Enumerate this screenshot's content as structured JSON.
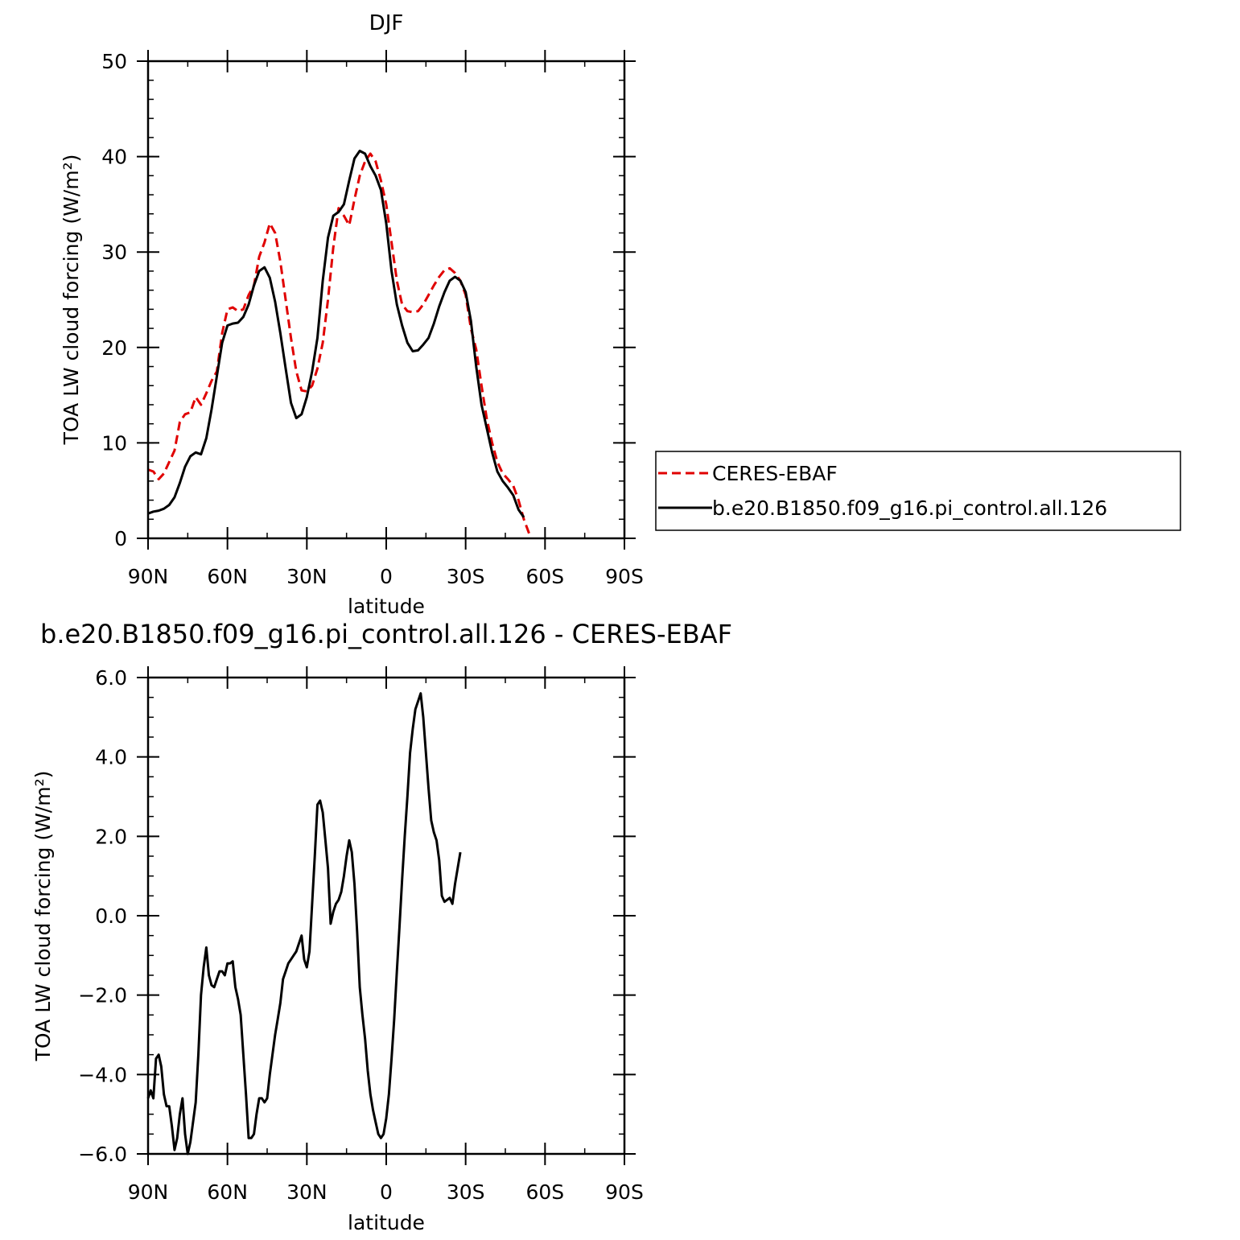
{
  "chart_data": [
    {
      "type": "line",
      "title": "DJF",
      "xlabel": "latitude",
      "ylabel": "TOA LW cloud forcing (W/m²)",
      "xlim": [
        90,
        -90
      ],
      "ylim": [
        0,
        50
      ],
      "x_ticks": [
        90,
        60,
        30,
        0,
        -30,
        -60,
        -90
      ],
      "x_tick_labels": [
        "90N",
        "60N",
        "30N",
        "0",
        "30S",
        "60S",
        "90S"
      ],
      "y_ticks": [
        0,
        10,
        20,
        30,
        40,
        50
      ],
      "y_tick_labels": [
        "0",
        "10",
        "20",
        "30",
        "40",
        "50"
      ],
      "legend_position": "right",
      "series": [
        {
          "name": "CERES-EBAF",
          "color": "#e00000",
          "dash": "dashed",
          "points": [
            [
              90,
              7.2
            ],
            [
              88,
              7.0
            ],
            [
              86,
              6.2
            ],
            [
              84,
              6.8
            ],
            [
              82,
              8.0
            ],
            [
              80,
              9.2
            ],
            [
              78,
              12.2
            ],
            [
              76,
              13.0
            ],
            [
              74,
              13.2
            ],
            [
              72,
              14.8
            ],
            [
              70,
              14.0
            ],
            [
              68,
              15.2
            ],
            [
              66,
              16.5
            ],
            [
              64,
              17.5
            ],
            [
              62,
              21.5
            ],
            [
              60,
              24.0
            ],
            [
              58,
              24.2
            ],
            [
              56,
              23.8
            ],
            [
              54,
              24.0
            ],
            [
              52,
              25.5
            ],
            [
              50,
              26.5
            ],
            [
              48,
              29.5
            ],
            [
              46,
              31.0
            ],
            [
              44,
              33.0
            ],
            [
              42,
              32.0
            ],
            [
              40,
              29.0
            ],
            [
              38,
              25.0
            ],
            [
              36,
              21.0
            ],
            [
              34,
              17.5
            ],
            [
              32,
              15.5
            ],
            [
              30,
              15.4
            ],
            [
              28,
              16.0
            ],
            [
              26,
              17.8
            ],
            [
              24,
              20.5
            ],
            [
              22,
              25.0
            ],
            [
              20,
              30.5
            ],
            [
              18,
              34.6
            ],
            [
              16,
              33.8
            ],
            [
              14,
              32.8
            ],
            [
              12,
              35.5
            ],
            [
              10,
              38.0
            ],
            [
              8,
              39.5
            ],
            [
              6,
              40.3
            ],
            [
              4,
              39.5
            ],
            [
              2,
              37.5
            ],
            [
              0,
              35.0
            ],
            [
              -2,
              31.0
            ],
            [
              -4,
              27.0
            ],
            [
              -6,
              24.5
            ],
            [
              -8,
              23.8
            ],
            [
              -10,
              23.7
            ],
            [
              -12,
              23.8
            ],
            [
              -14,
              24.5
            ],
            [
              -16,
              25.5
            ],
            [
              -18,
              26.5
            ],
            [
              -20,
              27.4
            ],
            [
              -22,
              28.1
            ],
            [
              -24,
              28.3
            ],
            [
              -26,
              27.8
            ],
            [
              -28,
              27.0
            ],
            [
              -30,
              25.5
            ],
            [
              -32,
              22.0
            ],
            [
              -34,
              19.8
            ],
            [
              -36,
              16.0
            ],
            [
              -38,
              12.5
            ],
            [
              -40,
              10.0
            ],
            [
              -42,
              8.0
            ],
            [
              -44,
              6.8
            ],
            [
              -46,
              6.2
            ],
            [
              -48,
              5.5
            ],
            [
              -50,
              4.0
            ],
            [
              -52,
              2.0
            ],
            [
              -54,
              0.5
            ]
          ]
        },
        {
          "name": "b.e20.B1850.f09_g16.pi_control.all.126",
          "color": "#000000",
          "dash": "solid",
          "points": [
            [
              90,
              2.6
            ],
            [
              88,
              2.8
            ],
            [
              86,
              2.9
            ],
            [
              84,
              3.1
            ],
            [
              82,
              3.5
            ],
            [
              80,
              4.3
            ],
            [
              78,
              5.8
            ],
            [
              76,
              7.5
            ],
            [
              74,
              8.6
            ],
            [
              72,
              9.0
            ],
            [
              70,
              8.8
            ],
            [
              68,
              10.5
            ],
            [
              66,
              13.5
            ],
            [
              64,
              17.0
            ],
            [
              62,
              20.5
            ],
            [
              60,
              22.3
            ],
            [
              58,
              22.5
            ],
            [
              56,
              22.6
            ],
            [
              54,
              23.2
            ],
            [
              52,
              24.5
            ],
            [
              50,
              26.5
            ],
            [
              48,
              28.0
            ],
            [
              46,
              28.4
            ],
            [
              44,
              27.3
            ],
            [
              42,
              24.8
            ],
            [
              40,
              21.5
            ],
            [
              38,
              17.8
            ],
            [
              36,
              14.2
            ],
            [
              34,
              12.6
            ],
            [
              32,
              13.0
            ],
            [
              30,
              14.8
            ],
            [
              28,
              17.5
            ],
            [
              26,
              21.0
            ],
            [
              24,
              27.0
            ],
            [
              22,
              31.5
            ],
            [
              20,
              33.8
            ],
            [
              18,
              34.2
            ],
            [
              16,
              35.0
            ],
            [
              14,
              37.5
            ],
            [
              12,
              39.8
            ],
            [
              10,
              40.6
            ],
            [
              8,
              40.3
            ],
            [
              6,
              39.0
            ],
            [
              4,
              38.0
            ],
            [
              2,
              36.5
            ],
            [
              0,
              33.0
            ],
            [
              -2,
              28.0
            ],
            [
              -4,
              24.5
            ],
            [
              -6,
              22.3
            ],
            [
              -8,
              20.5
            ],
            [
              -10,
              19.6
            ],
            [
              -12,
              19.7
            ],
            [
              -14,
              20.3
            ],
            [
              -16,
              21.0
            ],
            [
              -18,
              22.5
            ],
            [
              -20,
              24.3
            ],
            [
              -22,
              25.8
            ],
            [
              -24,
              27.0
            ],
            [
              -26,
              27.4
            ],
            [
              -28,
              27.0
            ],
            [
              -30,
              25.8
            ],
            [
              -32,
              22.8
            ],
            [
              -34,
              18.0
            ],
            [
              -36,
              14.0
            ],
            [
              -38,
              11.5
            ],
            [
              -40,
              9.0
            ],
            [
              -42,
              7.0
            ],
            [
              -44,
              6.0
            ],
            [
              -46,
              5.3
            ],
            [
              -48,
              4.5
            ],
            [
              -50,
              3.0
            ],
            [
              -52,
              2.2
            ]
          ]
        }
      ]
    },
    {
      "type": "line",
      "title": "b.e20.B1850.f09_g16.pi_control.all.126 - CERES-EBAF",
      "xlabel": "latitude",
      "ylabel": "TOA LW cloud forcing (W/m²)",
      "xlim": [
        90,
        -90
      ],
      "ylim": [
        -6.0,
        6.0
      ],
      "x_ticks": [
        90,
        60,
        30,
        0,
        -30,
        -60,
        -90
      ],
      "x_tick_labels": [
        "90N",
        "60N",
        "30N",
        "0",
        "30S",
        "60S",
        "90S"
      ],
      "y_ticks": [
        -6.0,
        -4.0,
        -2.0,
        0.0,
        2.0,
        4.0,
        6.0
      ],
      "y_tick_labels": [
        "−6.0",
        "−4.0",
        "−2.0",
        "0.0",
        "2.0",
        "4.0",
        "6.0"
      ],
      "series": [
        {
          "color": "#000000",
          "dash": "solid",
          "points": [
            [
              90,
              -4.6
            ],
            [
              89,
              -4.4
            ],
            [
              88,
              -4.6
            ],
            [
              87,
              -3.6
            ],
            [
              86,
              -3.5
            ],
            [
              85,
              -3.8
            ],
            [
              84,
              -4.5
            ],
            [
              83,
              -4.8
            ],
            [
              82,
              -4.8
            ],
            [
              81,
              -5.3
            ],
            [
              80,
              -5.9
            ],
            [
              79,
              -5.6
            ],
            [
              78,
              -5.0
            ],
            [
              77,
              -4.6
            ],
            [
              76,
              -5.5
            ],
            [
              75,
              -6.0
            ],
            [
              74,
              -5.7
            ],
            [
              73,
              -5.2
            ],
            [
              72,
              -4.7
            ],
            [
              71,
              -3.5
            ],
            [
              70,
              -2.0
            ],
            [
              69,
              -1.3
            ],
            [
              68,
              -0.8
            ],
            [
              67,
              -1.5
            ],
            [
              66,
              -1.75
            ],
            [
              65,
              -1.8
            ],
            [
              64,
              -1.6
            ],
            [
              63,
              -1.4
            ],
            [
              62,
              -1.4
            ],
            [
              61,
              -1.5
            ],
            [
              60,
              -1.2
            ],
            [
              59,
              -1.2
            ],
            [
              58,
              -1.15
            ],
            [
              57,
              -1.8
            ],
            [
              56,
              -2.1
            ],
            [
              55,
              -2.5
            ],
            [
              54,
              -3.5
            ],
            [
              53,
              -4.5
            ],
            [
              52,
              -5.6
            ],
            [
              51,
              -5.6
            ],
            [
              50,
              -5.5
            ],
            [
              49,
              -5.0
            ],
            [
              48,
              -4.6
            ],
            [
              47,
              -4.6
            ],
            [
              46,
              -4.7
            ],
            [
              45,
              -4.6
            ],
            [
              44,
              -4.0
            ],
            [
              43,
              -3.5
            ],
            [
              42,
              -3.0
            ],
            [
              41,
              -2.6
            ],
            [
              40,
              -2.2
            ],
            [
              39,
              -1.6
            ],
            [
              38,
              -1.4
            ],
            [
              37,
              -1.2
            ],
            [
              36,
              -1.1
            ],
            [
              35,
              -1.0
            ],
            [
              34,
              -0.9
            ],
            [
              33,
              -0.7
            ],
            [
              32,
              -0.5
            ],
            [
              31,
              -1.1
            ],
            [
              30,
              -1.3
            ],
            [
              29,
              -0.9
            ],
            [
              28,
              0.3
            ],
            [
              27,
              1.5
            ],
            [
              26,
              2.8
            ],
            [
              25,
              2.9
            ],
            [
              24,
              2.6
            ],
            [
              23,
              1.9
            ],
            [
              22,
              1.2
            ],
            [
              21,
              -0.2
            ],
            [
              20,
              0.1
            ],
            [
              19,
              0.3
            ],
            [
              18,
              0.4
            ],
            [
              17,
              0.6
            ],
            [
              16,
              1.0
            ],
            [
              15,
              1.5
            ],
            [
              14,
              1.9
            ],
            [
              13,
              1.6
            ],
            [
              12,
              0.8
            ],
            [
              11,
              -0.4
            ],
            [
              10,
              -1.8
            ],
            [
              9,
              -2.5
            ],
            [
              8,
              -3.1
            ],
            [
              7,
              -3.9
            ],
            [
              6,
              -4.5
            ],
            [
              5,
              -4.9
            ],
            [
              4,
              -5.2
            ],
            [
              3,
              -5.5
            ],
            [
              2,
              -5.6
            ],
            [
              1,
              -5.5
            ],
            [
              0,
              -5.1
            ],
            [
              -1,
              -4.5
            ],
            [
              -2,
              -3.6
            ],
            [
              -3,
              -2.6
            ],
            [
              -4,
              -1.4
            ],
            [
              -5,
              -0.3
            ],
            [
              -6,
              0.9
            ],
            [
              -7,
              2.0
            ],
            [
              -8,
              3.0
            ],
            [
              -9,
              4.1
            ],
            [
              -10,
              4.7
            ],
            [
              -11,
              5.2
            ],
            [
              -12,
              5.4
            ],
            [
              -13,
              5.6
            ],
            [
              -14,
              5.0
            ],
            [
              -15,
              4.1
            ],
            [
              -16,
              3.2
            ],
            [
              -17,
              2.4
            ],
            [
              -18,
              2.1
            ],
            [
              -19,
              1.9
            ],
            [
              -20,
              1.4
            ],
            [
              -21,
              0.5
            ],
            [
              -22,
              0.35
            ],
            [
              -23,
              0.4
            ],
            [
              -24,
              0.45
            ],
            [
              -25,
              0.3
            ],
            [
              -26,
              0.8
            ],
            [
              -27,
              1.2
            ],
            [
              -28,
              1.6
            ]
          ]
        }
      ]
    }
  ]
}
